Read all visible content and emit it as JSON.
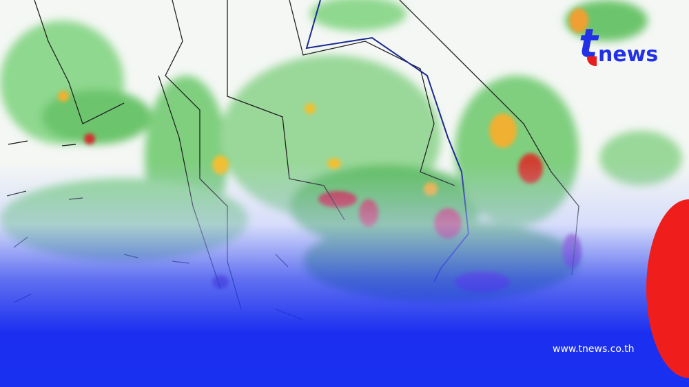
{
  "brand": {
    "logo_text": "tnews",
    "url": "www.tnews.co.th"
  },
  "colors": {
    "brand_blue": "#2230e6",
    "brand_red": "#e81e1e",
    "rain_light": "#7fd07f",
    "rain_moderate": "#2f9a3a",
    "rain_heavy": "#f0c030",
    "rain_very_heavy": "#c02030",
    "rain_extreme": "#b040b0"
  },
  "map": {
    "type": "rainfall forecast",
    "region": "Thailand and Indochina"
  }
}
